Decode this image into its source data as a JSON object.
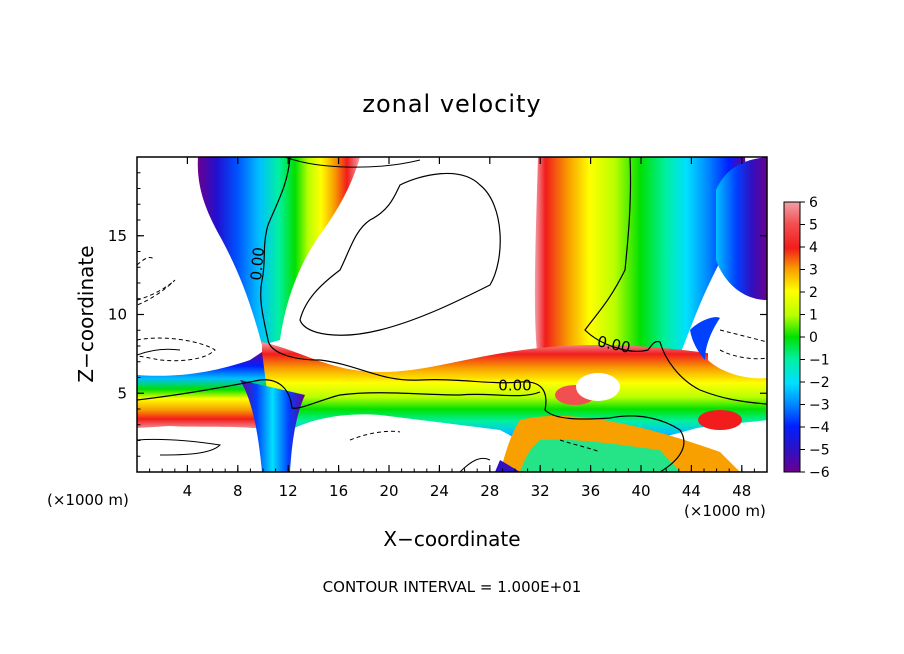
{
  "chart_data": {
    "type": "heatmap",
    "title": "zonal velocity",
    "xlabel": "X−coordinate",
    "ylabel": "Z−coordinate",
    "x_unit_label": "(×1000 m)",
    "xlim": [
      0,
      50
    ],
    "ylim": [
      0,
      20
    ],
    "x_ticks": [
      4,
      8,
      12,
      16,
      20,
      24,
      28,
      32,
      36,
      40,
      44,
      48
    ],
    "y_ticks": [
      5,
      10,
      15
    ],
    "colorbar": {
      "ticks": [
        "6",
        "5",
        "4",
        "3",
        "2",
        "1",
        "0",
        "−1",
        "−2",
        "−3",
        "−4",
        "−5",
        "−6"
      ],
      "range": [
        -6,
        6
      ]
    },
    "contour_labels": [
      {
        "text": "0.00",
        "x": 9.8,
        "y": 13.2,
        "rotate": -85
      },
      {
        "text": "0.00",
        "x": 37.8,
        "y": 7.9,
        "rotate": 12
      },
      {
        "text": "0.00",
        "x": 30.0,
        "y": 5.3,
        "rotate": 0
      }
    ],
    "footnote": "CONTOUR INTERVAL = 1.000E+01",
    "colors": {
      "pos6": "#f2a0a8",
      "pos5": "#f25050",
      "pos4": "#f21c1c",
      "pos3": "#f8a000",
      "pos2": "#ffff00",
      "pos1": "#b8ff00",
      "zero": "#00e000",
      "neg1": "#00f0a0",
      "neg2": "#00e0ff",
      "neg3": "#0088ff",
      "neg4": "#0020ff",
      "neg5": "#3010c0",
      "neg6": "#6a0090"
    }
  }
}
